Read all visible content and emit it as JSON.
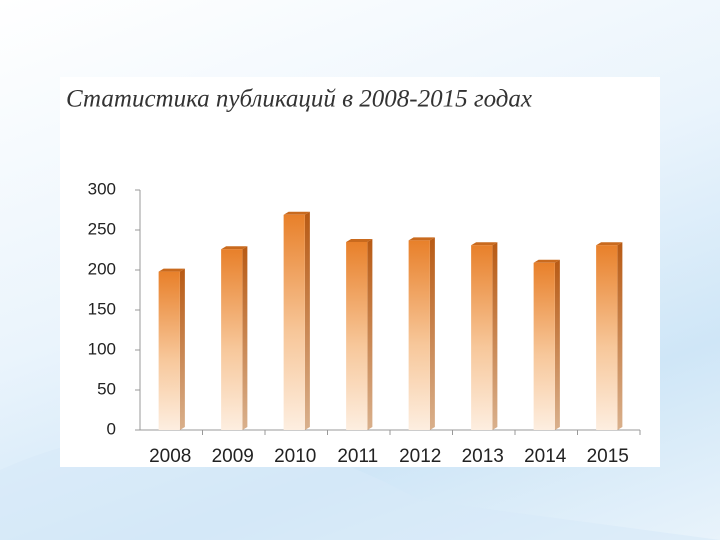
{
  "chart_data": {
    "type": "bar",
    "title": "Статистика публикаций в 2008-2015 годах",
    "categories": [
      "2008",
      "2009",
      "2010",
      "2011",
      "2012",
      "2013",
      "2014",
      "2015"
    ],
    "values": [
      198,
      226,
      269,
      235,
      237,
      231,
      209,
      231
    ],
    "color": "#e8802a",
    "ylim": [
      0,
      300
    ],
    "yticks": [
      0,
      50,
      100,
      150,
      200,
      250,
      300
    ],
    "grid": false
  }
}
